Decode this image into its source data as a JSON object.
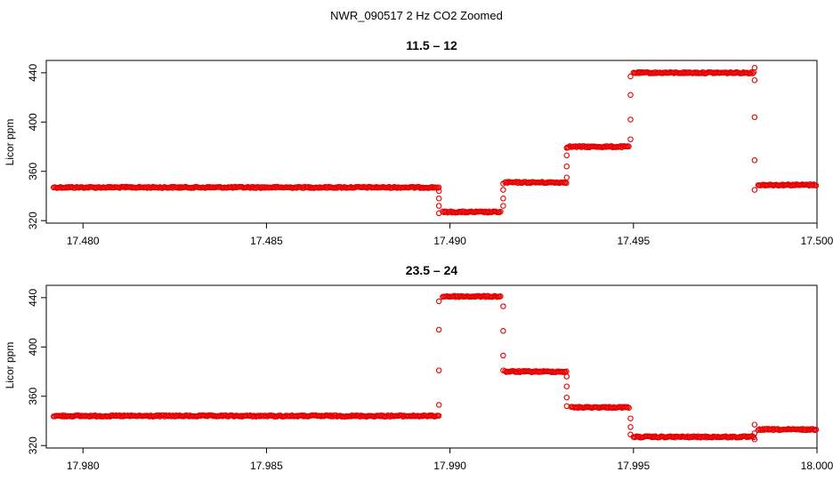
{
  "figure_title": "NWR_090517  2 Hz CO2 Zoomed",
  "colors": {
    "points": "#e60000",
    "axes": "#000000",
    "background": "#ffffff"
  },
  "chart_data": [
    {
      "type": "scatter",
      "title": "11.5 – 12",
      "xlabel": "",
      "ylabel": "Licor ppm",
      "xlim": [
        17.479,
        17.5
      ],
      "ylim": [
        318,
        450
      ],
      "grid": false,
      "x_ticks": [
        17.48,
        17.485,
        17.49,
        17.495,
        17.5
      ],
      "x_tick_labels": [
        "17.480",
        "17.485",
        "17.490",
        "17.495",
        "17.500"
      ],
      "y_ticks": [
        320,
        360,
        400,
        440
      ],
      "y_tick_labels": [
        "320",
        "360",
        "400",
        "440"
      ],
      "segments": [
        {
          "x_start": 17.4792,
          "x_end": 17.4897,
          "y": 347
        },
        {
          "x_start": 17.4898,
          "x_end": 17.4914,
          "y": 327
        },
        {
          "x_start": 17.4915,
          "x_end": 17.4932,
          "y": 351
        },
        {
          "x_start": 17.4932,
          "x_end": 17.4949,
          "y": 380
        },
        {
          "x_start": 17.495,
          "x_end": 17.4983,
          "y": 440
        },
        {
          "x_start": 17.4984,
          "x_end": 17.5,
          "y": 349
        }
      ],
      "transitions": [
        {
          "x": 17.4897,
          "y": [
            344,
            338,
            332,
            326
          ]
        },
        {
          "x": 17.49145,
          "y": [
            332,
            338,
            345,
            350
          ]
        },
        {
          "x": 17.49318,
          "y": [
            355,
            364,
            373,
            379
          ]
        },
        {
          "x": 17.49492,
          "y": [
            386,
            402,
            422,
            437
          ]
        },
        {
          "x": 17.4983,
          "y": [
            444,
            434,
            404,
            369,
            345
          ]
        }
      ]
    },
    {
      "type": "scatter",
      "title": "23.5 – 24",
      "xlabel": "",
      "ylabel": "Licor ppm",
      "xlim": [
        17.979,
        18.0
      ],
      "ylim": [
        318,
        450
      ],
      "grid": false,
      "x_ticks": [
        17.98,
        17.985,
        17.99,
        17.995,
        18.0
      ],
      "x_tick_labels": [
        "17.980",
        "17.985",
        "17.990",
        "17.995",
        "18.000"
      ],
      "y_ticks": [
        320,
        360,
        400,
        440
      ],
      "y_tick_labels": [
        "320",
        "360",
        "400",
        "440"
      ],
      "segments": [
        {
          "x_start": 17.9792,
          "x_end": 17.9897,
          "y": 344
        },
        {
          "x_start": 17.9898,
          "x_end": 17.9914,
          "y": 441
        },
        {
          "x_start": 17.9915,
          "x_end": 17.9932,
          "y": 380
        },
        {
          "x_start": 17.9933,
          "x_end": 17.9949,
          "y": 351
        },
        {
          "x_start": 17.995,
          "x_end": 17.9983,
          "y": 327
        },
        {
          "x_start": 17.9984,
          "x_end": 18.0,
          "y": 333
        }
      ],
      "transitions": [
        {
          "x": 17.9897,
          "y": [
            353,
            381,
            414,
            437
          ]
        },
        {
          "x": 17.99145,
          "y": [
            433,
            413,
            393,
            381
          ]
        },
        {
          "x": 17.99318,
          "y": [
            376,
            368,
            359,
            352
          ]
        },
        {
          "x": 17.99492,
          "y": [
            342,
            335,
            329
          ]
        },
        {
          "x": 17.9983,
          "y": [
            325,
            330,
            337
          ]
        }
      ]
    }
  ]
}
